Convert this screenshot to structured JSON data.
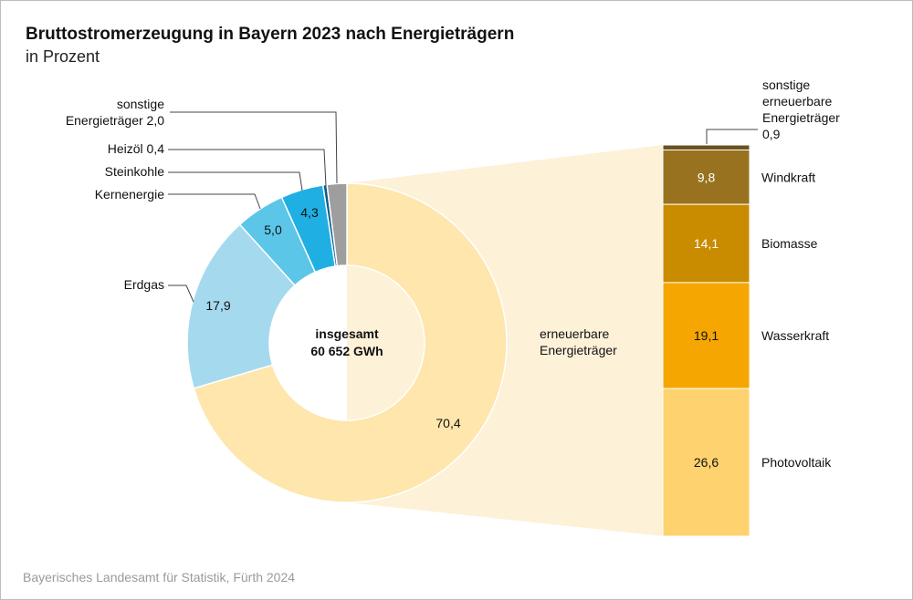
{
  "chart_data": {
    "type": "pie",
    "title": "Bruttostromerzeugung in Bayern 2023 nach Energieträgern",
    "subtitle": "in Prozent",
    "center_label": [
      "insgesamt",
      "60 652 GWh"
    ],
    "donut": [
      {
        "name": "erneuerbare Energieträger",
        "name_lines": [
          "erneuerbare",
          "Energieträger"
        ],
        "value": 70.4,
        "label": "70,4",
        "color": "#fee6ac"
      },
      {
        "name": "Erdgas",
        "value": 17.9,
        "label": "17,9",
        "color": "#a4d9ee"
      },
      {
        "name": "Kernenergie",
        "value": 5.0,
        "label": "5,0",
        "color": "#5cc6e9"
      },
      {
        "name": "Steinkohle",
        "value": 4.3,
        "label": "4,3",
        "color": "#20afe3"
      },
      {
        "name": "Heizöl 0,4",
        "value": 0.4,
        "label": "",
        "color": "#0d5e8a"
      },
      {
        "name": "sonstige Energieträger 2,0",
        "name_lines": [
          "sonstige",
          "Energieträger 2,0"
        ],
        "value": 2.0,
        "label": "",
        "color": "#9e9e9e"
      }
    ],
    "breakdown": [
      {
        "name": "sonstige erneuerbare Energieträger",
        "name_lines": [
          "sonstige",
          "erneuerbare",
          "Energieträger",
          "0,9"
        ],
        "value": 0.9,
        "label": "",
        "color": "#6b5122"
      },
      {
        "name": "Windkraft",
        "value": 9.8,
        "label": "9,8",
        "color": "#98721f"
      },
      {
        "name": "Biomasse",
        "value": 14.1,
        "label": "14,1",
        "color": "#c98b00"
      },
      {
        "name": "Wasserkraft",
        "value": 19.1,
        "label": "19,1",
        "color": "#f5a600"
      },
      {
        "name": "Photovoltaik",
        "value": 26.6,
        "label": "26,6",
        "color": "#fed26f"
      }
    ],
    "fan_color": "#fdf1d8"
  },
  "source": "Bayerisches Landesamt für Statistik, Fürth 2024"
}
